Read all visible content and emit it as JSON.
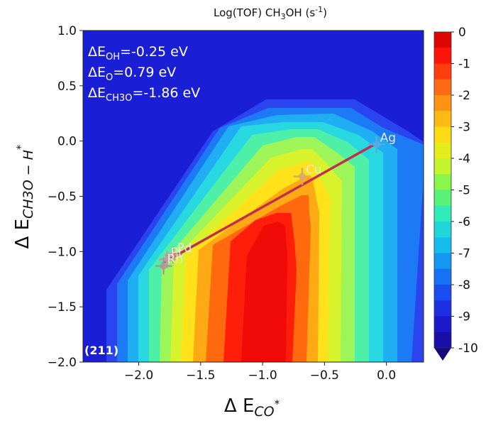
{
  "chart_data": {
    "type": "heatmap",
    "title": "Log(TOF) CH",
    "title_sub": "3",
    "title_rest": "OH (s",
    "title_sup": "-1",
    "title_end": ")",
    "xlabel": "Δ E",
    "xlabel_sub": "CO",
    "xlabel_sup": "*",
    "ylabel": "Δ E",
    "ylabel_sub": "CH3O − H",
    "ylabel_sup": "*",
    "xlim": [
      -2.45,
      0.3
    ],
    "ylim": [
      -2.0,
      1.0
    ],
    "x_ticks": [
      "−2.0",
      "−1.5",
      "−1.0",
      "−0.5",
      "0.0"
    ],
    "x_tick_values": [
      -2.0,
      -1.5,
      -1.0,
      -0.5,
      0.0
    ],
    "y_ticks": [
      "1.0",
      "0.5",
      "0.0",
      "−0.5",
      "−1.0",
      "−1.5",
      "−2.0"
    ],
    "y_tick_values": [
      1.0,
      0.5,
      0.0,
      -0.5,
      -1.0,
      -1.5,
      -2.0
    ],
    "colorbar": {
      "min": -10,
      "max": 0,
      "ticks": [
        "0",
        "-1",
        "-2",
        "-3",
        "-4",
        "-5",
        "-6",
        "-7",
        "-8",
        "-9",
        "-10"
      ],
      "tick_values": [
        0,
        -1,
        -2,
        -3,
        -4,
        -5,
        -6,
        -7,
        -8,
        -9,
        -10
      ]
    },
    "annotations": [
      {
        "main": "ΔE",
        "sub": "OH",
        "rest": "=-0.25 eV"
      },
      {
        "main": "ΔE",
        "sub": "O",
        "rest": "=0.79 eV"
      },
      {
        "main": "ΔE",
        "sub": "CH3O",
        "rest": "=-1.86 eV"
      }
    ],
    "facet_label": "(211)",
    "metals": [
      {
        "name": "Ag",
        "x": -0.08,
        "y": -0.03,
        "color": "#5aa9e6"
      },
      {
        "name": "Cu",
        "x": -0.68,
        "y": -0.32,
        "color": "#d9a86c"
      },
      {
        "name": "Pd",
        "x": -1.72,
        "y": -1.03,
        "color": "#c98a7a"
      },
      {
        "name": "Pt",
        "x": -1.77,
        "y": -1.07,
        "color": "#b8a0a0"
      },
      {
        "name": "Rh",
        "x": -1.8,
        "y": -1.13,
        "color": "#a89a9a"
      }
    ],
    "scaling_line": {
      "x": [
        -1.8,
        -0.08
      ],
      "y": [
        -1.1,
        -0.02
      ],
      "color": "#c0304a"
    }
  }
}
